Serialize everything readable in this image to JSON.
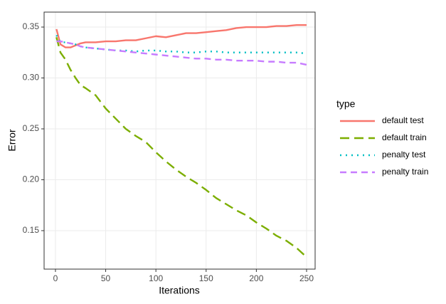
{
  "chart_data": {
    "type": "line",
    "x_label": "Iterations",
    "y_label": "Error",
    "legend_title": "type",
    "legend": "right",
    "grid": true,
    "xlim": [
      -11.3,
      258.5
    ],
    "ylim": [
      0.1122,
      0.3647
    ],
    "xticks": [
      0,
      50,
      100,
      150,
      200,
      250
    ],
    "yticks": [
      0.15,
      {
        "value": 0.2,
        "label": "0.20"
      },
      0.25,
      {
        "value": 0.3,
        "label": "0.30"
      },
      0.35
    ],
    "x": [
      1,
      5,
      10,
      15,
      20,
      25,
      30,
      40,
      50,
      60,
      70,
      80,
      90,
      100,
      110,
      120,
      130,
      140,
      150,
      160,
      170,
      180,
      190,
      200,
      210,
      220,
      230,
      240,
      250
    ],
    "series": [
      {
        "name": "default test",
        "color": "#F8766D",
        "linetype": "solid",
        "values": [
          0.348,
          0.333,
          0.33,
          0.33,
          0.332,
          0.334,
          0.335,
          0.335,
          0.336,
          0.336,
          0.337,
          0.337,
          0.339,
          0.341,
          0.34,
          0.342,
          0.344,
          0.344,
          0.345,
          0.346,
          0.347,
          0.349,
          0.35,
          0.35,
          0.35,
          0.351,
          0.351,
          0.352,
          0.352
        ]
      },
      {
        "name": "default train",
        "color": "#7CAE00",
        "linetype": "longdash",
        "values": [
          0.34,
          0.325,
          0.318,
          0.308,
          0.3,
          0.293,
          0.29,
          0.283,
          0.27,
          0.26,
          0.25,
          0.243,
          0.237,
          0.227,
          0.218,
          0.21,
          0.203,
          0.197,
          0.19,
          0.182,
          0.176,
          0.17,
          0.165,
          0.158,
          0.152,
          0.145,
          0.14,
          0.133,
          0.124
        ]
      },
      {
        "name": "penalty test",
        "color": "#00BFC4",
        "linetype": "dotted",
        "values": [
          0.342,
          0.335,
          0.335,
          0.334,
          0.333,
          0.331,
          0.33,
          0.329,
          0.328,
          0.327,
          0.327,
          0.326,
          0.327,
          0.327,
          0.326,
          0.326,
          0.325,
          0.325,
          0.326,
          0.326,
          0.325,
          0.325,
          0.325,
          0.325,
          0.325,
          0.325,
          0.325,
          0.325,
          0.324
        ]
      },
      {
        "name": "penalty train",
        "color": "#C77CFF",
        "linetype": "dashed",
        "values": [
          0.336,
          0.336,
          0.335,
          0.334,
          0.333,
          0.331,
          0.33,
          0.329,
          0.328,
          0.327,
          0.326,
          0.325,
          0.324,
          0.323,
          0.322,
          0.321,
          0.32,
          0.319,
          0.319,
          0.318,
          0.318,
          0.317,
          0.317,
          0.317,
          0.316,
          0.316,
          0.315,
          0.315,
          0.313
        ]
      }
    ]
  }
}
